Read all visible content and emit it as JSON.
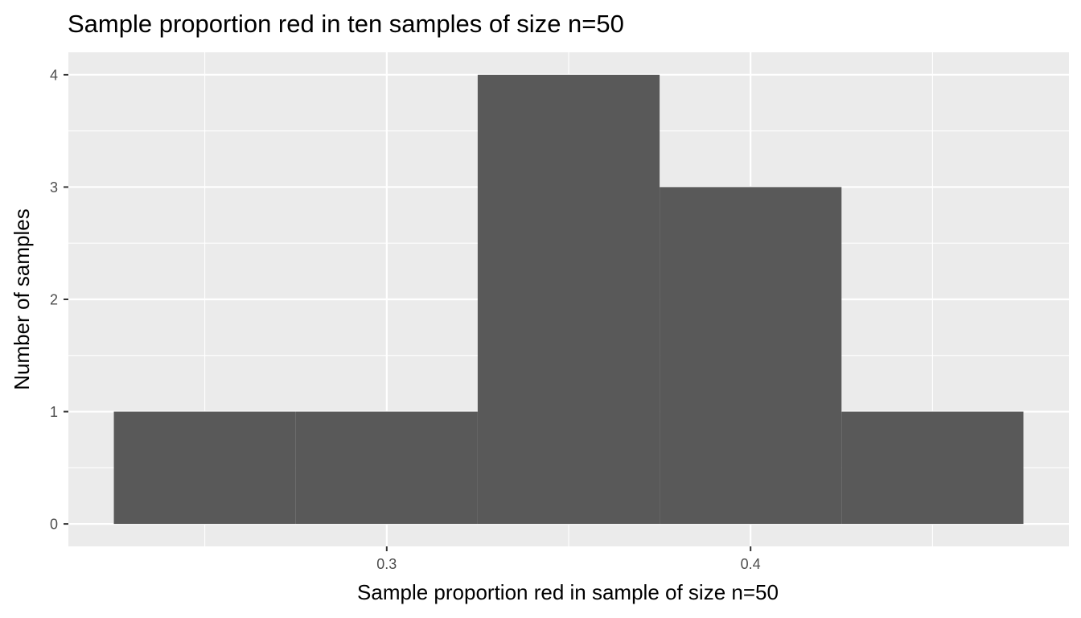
{
  "chart_data": {
    "type": "bar",
    "title": "Sample proportion red in ten samples of size n=50",
    "xlabel": "Sample proportion red in sample of size n=50",
    "ylabel": "Number of samples",
    "bins": [
      {
        "start": 0.225,
        "end": 0.275,
        "count": 1
      },
      {
        "start": 0.275,
        "end": 0.325,
        "count": 1
      },
      {
        "start": 0.325,
        "end": 0.375,
        "count": 4
      },
      {
        "start": 0.375,
        "end": 0.425,
        "count": 3
      },
      {
        "start": 0.425,
        "end": 0.475,
        "count": 1
      }
    ],
    "x_ticks": [
      {
        "value": 0.3,
        "label": "0.3"
      },
      {
        "value": 0.4,
        "label": "0.4"
      }
    ],
    "y_ticks": [
      {
        "value": 0,
        "label": "0"
      },
      {
        "value": 1,
        "label": "1"
      },
      {
        "value": 2,
        "label": "2"
      },
      {
        "value": 3,
        "label": "3"
      },
      {
        "value": 4,
        "label": "4"
      }
    ],
    "xlim": [
      0.2125,
      0.4875
    ],
    "ylim": [
      -0.2,
      4.2
    ],
    "grid": true,
    "colors": {
      "panel": "#ebebeb",
      "grid": "#ffffff",
      "bar": "#595959",
      "tick": "#333333",
      "tick_label": "#4d4d4d"
    }
  }
}
